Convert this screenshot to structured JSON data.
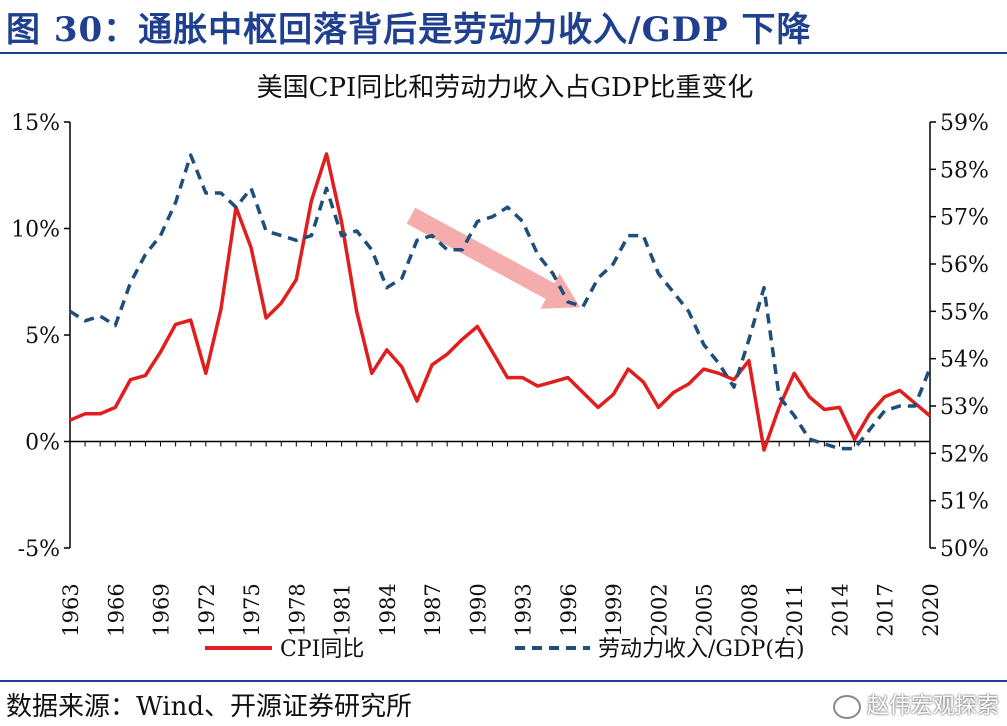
{
  "figure": {
    "title": "图 30：通胀中枢回落背后是劳动力收入/GDP 下降",
    "source": "数据来源：Wind、开源证券研究所",
    "watermark": "赵伟宏观探索"
  },
  "chart_data": {
    "type": "line",
    "title": "美国CPI同比和劳动力收入占GDP比重变化",
    "xlabel": "",
    "ylabel": "",
    "x": [
      1963,
      1964,
      1965,
      1966,
      1967,
      1968,
      1969,
      1970,
      1971,
      1972,
      1973,
      1974,
      1975,
      1976,
      1977,
      1978,
      1979,
      1980,
      1981,
      1982,
      1983,
      1984,
      1985,
      1986,
      1987,
      1988,
      1989,
      1990,
      1991,
      1992,
      1993,
      1994,
      1995,
      1996,
      1997,
      1998,
      1999,
      2000,
      2001,
      2002,
      2003,
      2004,
      2005,
      2006,
      2007,
      2008,
      2009,
      2010,
      2011,
      2012,
      2013,
      2014,
      2015,
      2016,
      2017,
      2018,
      2019,
      2020
    ],
    "x_tick_labels": [
      "1963",
      "1966",
      "1969",
      "1972",
      "1975",
      "1978",
      "1981",
      "1984",
      "1987",
      "1990",
      "1993",
      "1996",
      "1999",
      "2002",
      "2005",
      "2008",
      "2011",
      "2014",
      "2017",
      "2020"
    ],
    "left_axis": {
      "ylim": [
        -5,
        15
      ],
      "ticks": [
        -5,
        0,
        5,
        10,
        15
      ],
      "tick_labels": [
        "-5%",
        "0%",
        "5%",
        "10%",
        "15%"
      ]
    },
    "right_axis": {
      "ylim": [
        50,
        59
      ],
      "ticks": [
        50,
        51,
        52,
        53,
        54,
        55,
        56,
        57,
        58,
        59
      ],
      "tick_labels": [
        "50%",
        "51%",
        "52%",
        "53%",
        "54%",
        "55%",
        "56%",
        "57%",
        "58%",
        "59%"
      ]
    },
    "series": [
      {
        "name": "CPI同比",
        "axis": "left",
        "color": "#e01e1e",
        "style": "solid",
        "values": [
          1.0,
          1.3,
          1.3,
          1.6,
          2.9,
          3.1,
          4.2,
          5.5,
          5.7,
          3.2,
          6.2,
          11.0,
          9.1,
          5.8,
          6.5,
          7.6,
          11.3,
          13.5,
          10.3,
          6.1,
          3.2,
          4.3,
          3.5,
          1.9,
          3.6,
          4.1,
          4.8,
          5.4,
          4.2,
          3.0,
          3.0,
          2.6,
          2.8,
          3.0,
          2.3,
          1.6,
          2.2,
          3.4,
          2.8,
          1.6,
          2.3,
          2.7,
          3.4,
          3.2,
          2.9,
          3.8,
          -0.4,
          1.6,
          3.2,
          2.1,
          1.5,
          1.6,
          0.1,
          1.3,
          2.1,
          2.4,
          1.8,
          1.2
        ]
      },
      {
        "name": "劳动力收入/GDP(右)",
        "axis": "right",
        "color": "#1f4e79",
        "style": "dashed",
        "values": [
          55.0,
          54.8,
          54.9,
          54.7,
          55.6,
          56.2,
          56.6,
          57.3,
          58.3,
          57.5,
          57.5,
          57.2,
          57.6,
          56.7,
          56.6,
          56.5,
          56.6,
          57.6,
          56.6,
          56.7,
          56.3,
          55.5,
          55.7,
          56.5,
          56.6,
          56.3,
          56.3,
          56.9,
          57.0,
          57.2,
          56.9,
          56.2,
          55.8,
          55.2,
          55.1,
          55.7,
          56.0,
          56.6,
          56.6,
          55.8,
          55.4,
          55.0,
          54.3,
          53.9,
          53.4,
          54.4,
          55.5,
          53.2,
          52.8,
          52.3,
          52.2,
          52.1,
          52.1,
          52.5,
          52.9,
          53.0,
          53.0,
          53.8
        ]
      }
    ],
    "annotation": {
      "type": "arrow",
      "description": "downward trend"
    },
    "legend": {
      "position": "bottom"
    }
  }
}
